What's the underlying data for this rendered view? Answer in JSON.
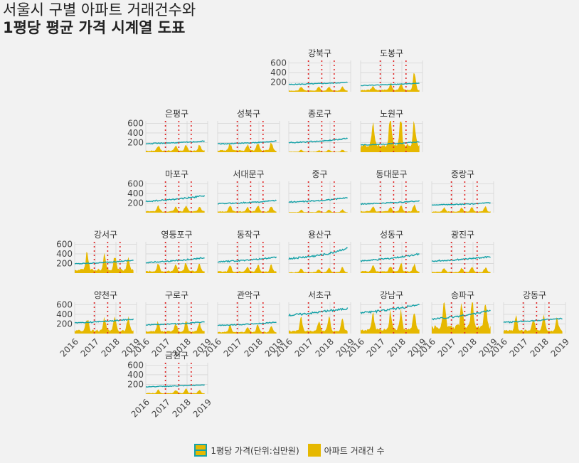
{
  "title": {
    "line1": "서울시 구별 아파트 거래건수와",
    "line2": "1평당 평균 가격 시계열 도표"
  },
  "legend": {
    "price_label": "1평당 가격(단위:십만원)",
    "volume_label": "아파트 거래건 수"
  },
  "colors": {
    "price_line": "#17a2a8",
    "volume_area": "#e6b800",
    "vline": "#e02020",
    "panel_bg": "#f2f2f2",
    "grid": "#d6d6d6"
  },
  "chart_data": {
    "type": "area",
    "facet_layout": "grid 6x7, panels laid out by row",
    "x_axis": {
      "range": [
        "2016",
        "2019"
      ],
      "ticks": [
        "2016",
        "2017",
        "2018",
        "2019"
      ]
    },
    "y_axis": {
      "range": [
        0,
        650
      ],
      "ticks": [
        200,
        400,
        600
      ]
    },
    "vertical_lines_at": [
      "2016.95",
      "2017.6",
      "2018.2"
    ],
    "series_names": [
      "1평당 가격(단위:십만원)",
      "아파트 거래건 수"
    ],
    "panels": [
      {
        "name": "강북구",
        "price": [
          150,
          162,
          176,
          195
        ],
        "volume_peaks": [
          90,
          70,
          110,
          95
        ],
        "volume_base": 30
      },
      {
        "name": "도봉구",
        "price": [
          130,
          142,
          158,
          178
        ],
        "volume_peaks": [
          110,
          140,
          160,
          430
        ],
        "volume_base": 40
      },
      {
        "name": "은평구",
        "price": [
          175,
          190,
          205,
          228
        ],
        "volume_peaks": [
          120,
          100,
          150,
          140
        ],
        "volume_base": 35
      },
      {
        "name": "성북구",
        "price": [
          170,
          185,
          200,
          230
        ],
        "volume_peaks": [
          150,
          130,
          170,
          180
        ],
        "volume_base": 40
      },
      {
        "name": "종로구",
        "price": [
          200,
          215,
          240,
          290
        ],
        "volume_peaks": [
          40,
          35,
          50,
          45
        ],
        "volume_base": 10
      },
      {
        "name": "노원구",
        "price": [
          150,
          165,
          185,
          215
        ],
        "volume_peaks": [
          420,
          650,
          600,
          640
        ],
        "volume_base": 150
      },
      {
        "name": "마포구",
        "price": [
          230,
          260,
          300,
          350
        ],
        "volume_peaks": [
          120,
          100,
          150,
          130
        ],
        "volume_base": 30
      },
      {
        "name": "서대문구",
        "price": [
          185,
          200,
          220,
          255
        ],
        "volume_peaks": [
          120,
          100,
          140,
          130
        ],
        "volume_base": 30
      },
      {
        "name": "중구",
        "price": [
          220,
          235,
          265,
          310
        ],
        "volume_peaks": [
          50,
          40,
          60,
          55
        ],
        "volume_base": 12
      },
      {
        "name": "동대문구",
        "price": [
          180,
          195,
          215,
          245
        ],
        "volume_peaks": [
          110,
          100,
          140,
          130
        ],
        "volume_base": 30
      },
      {
        "name": "중랑구",
        "price": [
          160,
          168,
          180,
          205
        ],
        "volume_peaks": [
          90,
          80,
          110,
          100
        ],
        "volume_base": 25
      },
      {
        "name": "강서구",
        "price": [
          190,
          210,
          235,
          265
        ],
        "volume_peaks": [
          380,
          330,
          300,
          220
        ],
        "volume_base": 80
      },
      {
        "name": "영등포구",
        "price": [
          220,
          245,
          275,
          320
        ],
        "volume_peaks": [
          170,
          150,
          180,
          150
        ],
        "volume_base": 45
      },
      {
        "name": "동작구",
        "price": [
          230,
          255,
          285,
          330
        ],
        "volume_peaks": [
          140,
          120,
          160,
          140
        ],
        "volume_base": 35
      },
      {
        "name": "용산구",
        "price": [
          300,
          340,
          400,
          520
        ],
        "volume_peaks": [
          90,
          70,
          110,
          100
        ],
        "volume_base": 20
      },
      {
        "name": "성동구",
        "price": [
          250,
          285,
          330,
          400
        ],
        "volume_peaks": [
          150,
          130,
          170,
          150
        ],
        "volume_base": 40
      },
      {
        "name": "광진구",
        "price": [
          250,
          270,
          300,
          340
        ],
        "volume_peaks": [
          100,
          90,
          110,
          100
        ],
        "volume_base": 25
      },
      {
        "name": "양천구",
        "price": [
          220,
          240,
          265,
          300
        ],
        "volume_peaks": [
          300,
          280,
          320,
          300
        ],
        "volume_base": 70
      },
      {
        "name": "구로구",
        "price": [
          180,
          195,
          210,
          240
        ],
        "volume_peaks": [
          200,
          180,
          220,
          190
        ],
        "volume_base": 50
      },
      {
        "name": "관악구",
        "price": [
          170,
          185,
          205,
          235
        ],
        "volume_peaks": [
          140,
          120,
          160,
          140
        ],
        "volume_base": 35
      },
      {
        "name": "서초구",
        "price": [
          380,
          420,
          470,
          520
        ],
        "volume_peaks": [
          280,
          250,
          320,
          280
        ],
        "volume_base": 60
      },
      {
        "name": "강남구",
        "price": [
          430,
          470,
          530,
          590
        ],
        "volume_peaks": [
          330,
          380,
          420,
          360
        ],
        "volume_base": 90
      },
      {
        "name": "송파구",
        "price": [
          300,
          340,
          400,
          480
        ],
        "volume_peaks": [
          550,
          520,
          600,
          480
        ],
        "volume_base": 150
      },
      {
        "name": "강동구",
        "price": [
          230,
          255,
          280,
          310
        ],
        "volume_peaks": [
          300,
          260,
          330,
          280
        ],
        "volume_base": 70
      },
      {
        "name": "금천구",
        "price": [
          150,
          160,
          172,
          190
        ],
        "volume_peaks": [
          80,
          70,
          90,
          80
        ],
        "volume_base": 20
      }
    ]
  }
}
